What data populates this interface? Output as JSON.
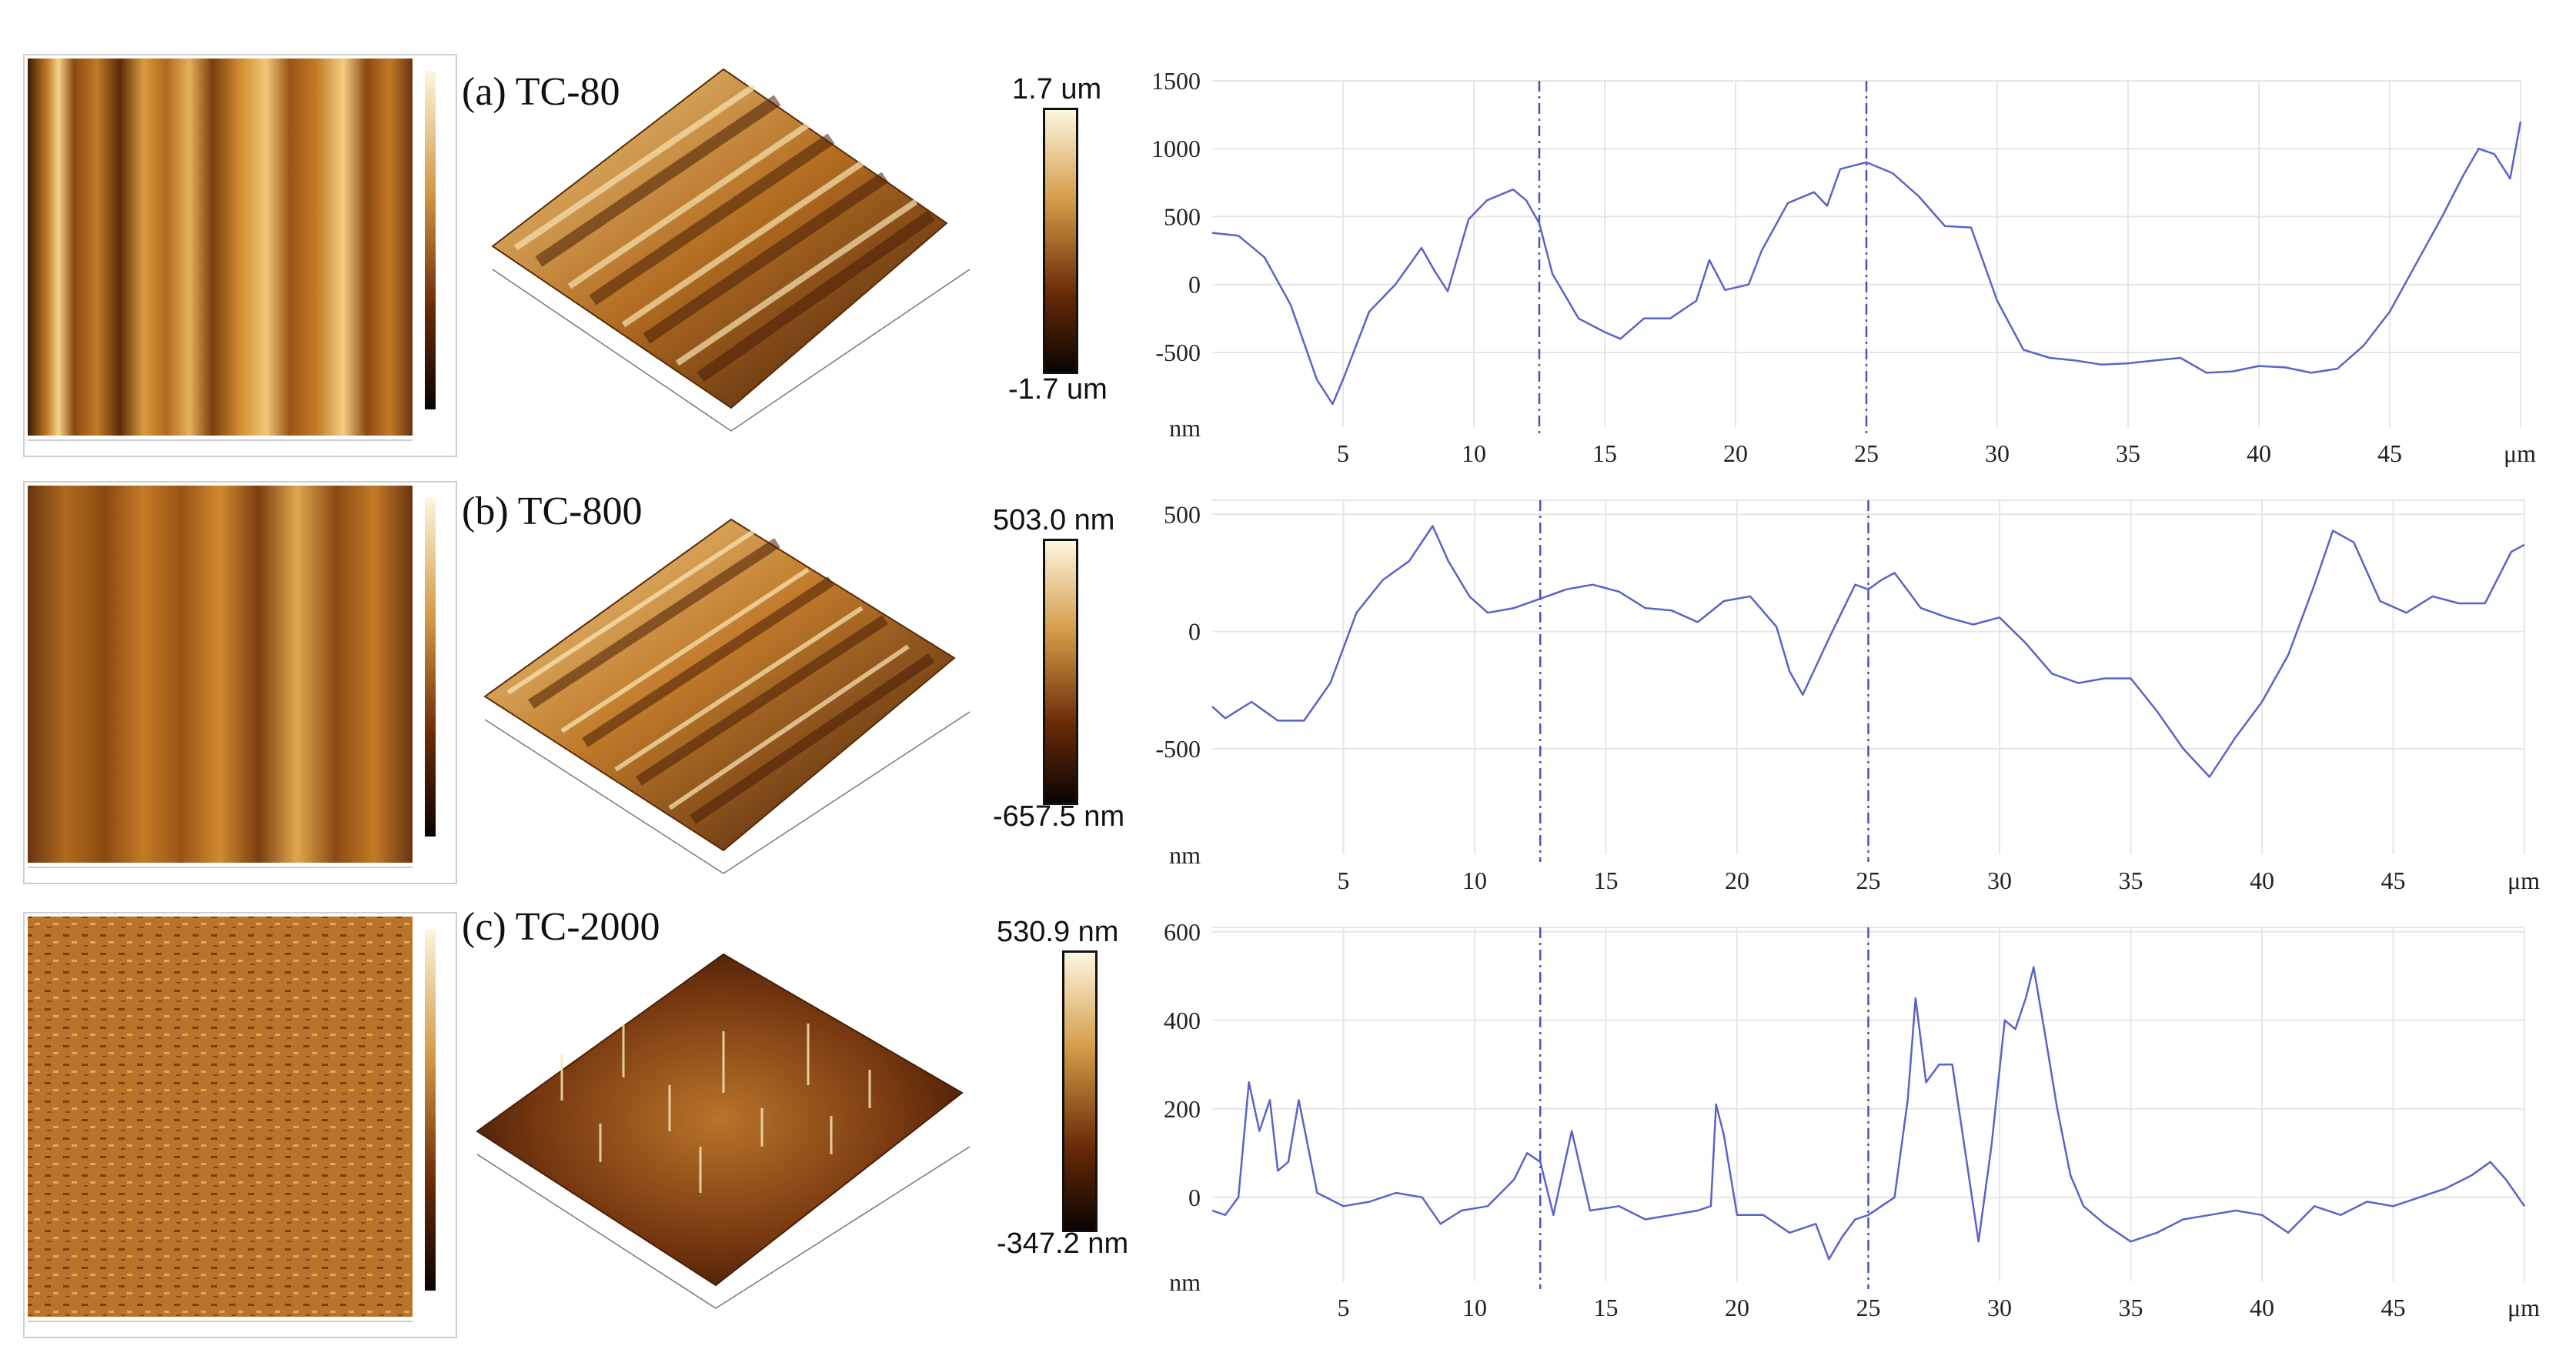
{
  "panels": [
    {
      "title": "(a) TC-80",
      "colorbar": {
        "max": "1.7 um",
        "min": "-1.7 um"
      }
    },
    {
      "title": "(b) TC-800",
      "colorbar": {
        "max": "503.0 nm",
        "min": "-657.5 nm"
      }
    },
    {
      "title": "(c) TC-2000",
      "colorbar": {
        "max": "530.9 nm",
        "min": "-347.2 nm"
      }
    }
  ],
  "colors": {
    "line": "#5a63c8",
    "marker": "#4a52b8",
    "grid": "#e6e6e6",
    "afm_dark": "#2a1204",
    "afm_mid": "#a0601c",
    "afm_light": "#f3dca0"
  },
  "chart_data": [
    {
      "type": "line",
      "title": "",
      "xlabel": "μm",
      "ylabel": "nm",
      "xlim": [
        0,
        50
      ],
      "ylim": [
        -1050,
        1500
      ],
      "xticks": [
        5,
        10,
        15,
        20,
        25,
        30,
        35,
        40,
        45
      ],
      "yticks": [
        -500,
        0,
        500,
        1000,
        1500
      ],
      "markers": [
        12.5,
        25
      ],
      "x": [
        0,
        1,
        2,
        3,
        4,
        4.6,
        5,
        6,
        7,
        8,
        8.5,
        9,
        9.8,
        10.5,
        11.5,
        12,
        12.5,
        13,
        14,
        15,
        15.6,
        16.5,
        17.5,
        18.5,
        19,
        19.6,
        20.5,
        21,
        22,
        23,
        23.5,
        24,
        25,
        26,
        27,
        28,
        29,
        30,
        31,
        32,
        33,
        34,
        35,
        36,
        37,
        38,
        39,
        40,
        41,
        42,
        43,
        44,
        45,
        46,
        47,
        47.8,
        48.4,
        49,
        49.6,
        50
      ],
      "values": [
        380,
        360,
        200,
        -150,
        -700,
        -880,
        -700,
        -200,
        0,
        270,
        100,
        -50,
        480,
        620,
        700,
        620,
        450,
        80,
        -250,
        -350,
        -400,
        -250,
        -250,
        -120,
        180,
        -40,
        0,
        250,
        600,
        680,
        580,
        850,
        900,
        820,
        650,
        430,
        420,
        -120,
        -480,
        -540,
        -560,
        -590,
        -580,
        -560,
        -540,
        -650,
        -640,
        -600,
        -610,
        -650,
        -620,
        -450,
        -200,
        150,
        500,
        800,
        1000,
        960,
        780,
        1200
      ]
    },
    {
      "type": "line",
      "title": "",
      "xlabel": "μm",
      "ylabel": "nm",
      "xlim": [
        0,
        50
      ],
      "ylim": [
        -950,
        560
      ],
      "xticks": [
        5,
        10,
        15,
        20,
        25,
        30,
        35,
        40,
        45
      ],
      "yticks": [
        -500,
        0,
        500
      ],
      "markers": [
        12.5,
        25
      ],
      "x": [
        0,
        0.5,
        1.5,
        2.5,
        3.5,
        4.5,
        5.5,
        6.5,
        7.5,
        8.4,
        9,
        9.8,
        10.5,
        11.5,
        12.5,
        13.5,
        14.5,
        15.5,
        16.5,
        17.5,
        18.5,
        19.5,
        20.5,
        21.5,
        22,
        22.5,
        23.5,
        24.5,
        25,
        25.5,
        26,
        27,
        28,
        29,
        30,
        31,
        32,
        33,
        34,
        35,
        36,
        37,
        38,
        39,
        40,
        41,
        42,
        42.7,
        43.5,
        44.5,
        45.5,
        46.5,
        47.5,
        48.5,
        49.5,
        50
      ],
      "values": [
        -320,
        -370,
        -300,
        -380,
        -380,
        -220,
        80,
        220,
        300,
        450,
        300,
        150,
        80,
        100,
        140,
        180,
        200,
        170,
        100,
        90,
        40,
        130,
        150,
        20,
        -170,
        -270,
        -30,
        200,
        180,
        220,
        250,
        100,
        60,
        30,
        60,
        -50,
        -180,
        -220,
        -200,
        -200,
        -340,
        -500,
        -620,
        -450,
        -300,
        -100,
        200,
        430,
        380,
        130,
        80,
        150,
        120,
        120,
        340,
        370
      ]
    },
    {
      "type": "line",
      "title": "",
      "xlabel": "μm",
      "ylabel": "nm",
      "xlim": [
        0,
        50
      ],
      "ylim": [
        -190,
        610
      ],
      "xticks": [
        5,
        10,
        15,
        20,
        25,
        30,
        35,
        40,
        45
      ],
      "yticks": [
        0,
        200,
        400,
        600
      ],
      "markers": [
        12.5,
        25
      ],
      "x": [
        0,
        0.5,
        1,
        1.4,
        1.8,
        2.2,
        2.5,
        2.9,
        3.3,
        4,
        5,
        6,
        7,
        8,
        8.7,
        9.5,
        10.5,
        11.5,
        12,
        12.5,
        13,
        13.7,
        14.4,
        15.5,
        16.5,
        17.5,
        18.5,
        19,
        19.2,
        19.5,
        20,
        21,
        22,
        23,
        23.5,
        24,
        24.5,
        25,
        26,
        26.5,
        26.8,
        27.2,
        27.7,
        28.2,
        28.7,
        29.2,
        29.7,
        30.2,
        30.6,
        31,
        31.3,
        31.7,
        32.2,
        32.7,
        33.2,
        34,
        35,
        36,
        37,
        38,
        39,
        40,
        41,
        42,
        43,
        44,
        45,
        46,
        47,
        48,
        48.7,
        49.3,
        50
      ],
      "values": [
        -30,
        -40,
        0,
        260,
        150,
        220,
        60,
        80,
        220,
        10,
        -20,
        -10,
        10,
        0,
        -60,
        -30,
        -20,
        40,
        100,
        80,
        -40,
        150,
        -30,
        -20,
        -50,
        -40,
        -30,
        -20,
        210,
        140,
        -40,
        -40,
        -80,
        -60,
        -140,
        -90,
        -50,
        -40,
        0,
        220,
        450,
        260,
        300,
        300,
        100,
        -100,
        120,
        400,
        380,
        450,
        520,
        380,
        200,
        50,
        -20,
        -60,
        -100,
        -80,
        -50,
        -40,
        -30,
        -40,
        -80,
        -20,
        -40,
        -10,
        -20,
        0,
        20,
        50,
        80,
        40,
        -20
      ]
    }
  ]
}
